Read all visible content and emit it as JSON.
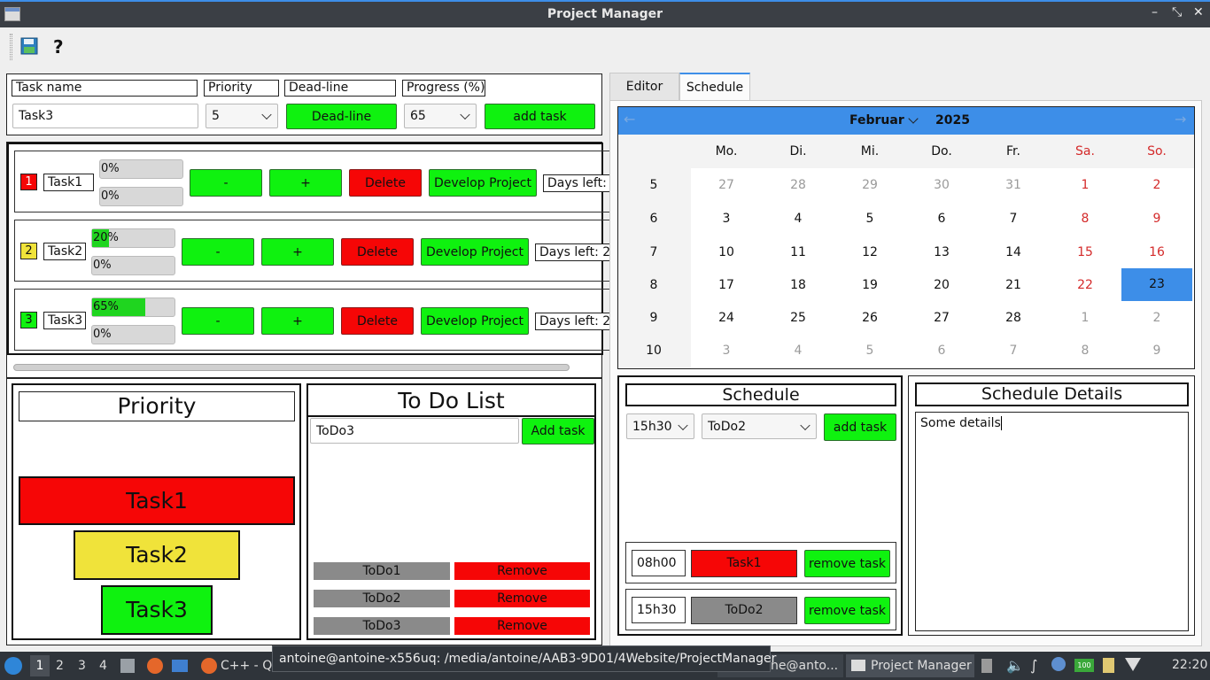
{
  "window": {
    "title": "Project Manager"
  },
  "top_inputs": {
    "labels": [
      "Task name",
      "Priority",
      "Dead-line",
      "Progress (%)"
    ],
    "task_name_value": "Task3",
    "priority_value": "5",
    "deadline_button": "Dead-line",
    "progress_value": "65",
    "add_task": "add task"
  },
  "tasks": [
    {
      "num": "1",
      "name": "Task1",
      "p1": "0%",
      "p2": "0%",
      "progress": 0,
      "minus": "-",
      "plus": "+",
      "delete": "Delete",
      "develop": "Develop Project",
      "days": "Days left:",
      "color": "#f60606"
    },
    {
      "num": "2",
      "name": "Task2",
      "p1": "20%",
      "p2": "0%",
      "progress": 20,
      "minus": "-",
      "plus": "+",
      "delete": "Delete",
      "develop": "Develop Project",
      "days": "Days left: 2",
      "color": "#f0e33a"
    },
    {
      "num": "3",
      "name": "Task3",
      "p1": "65%",
      "p2": "0%",
      "progress": 65,
      "minus": "-",
      "plus": "+",
      "delete": "Delete",
      "develop": "Develop Project",
      "days": "Days left: 2",
      "color": "#0ff20f"
    }
  ],
  "priority_panel": {
    "title": "Priority",
    "items": [
      "Task1",
      "Task2",
      "Task3"
    ]
  },
  "todo_panel": {
    "title": "To Do List",
    "input_value": "ToDo3",
    "add": "Add task",
    "items": [
      {
        "name": "ToDo1",
        "remove": "Remove"
      },
      {
        "name": "ToDo2",
        "remove": "Remove"
      },
      {
        "name": "ToDo3",
        "remove": "Remove"
      }
    ]
  },
  "tabs": [
    "Editor",
    "Schedule"
  ],
  "calendar": {
    "month": "Februar",
    "year": "2025",
    "weekdays": [
      "Mo.",
      "Di.",
      "Mi.",
      "Do.",
      "Fr.",
      "Sa.",
      "So."
    ],
    "weeks": [
      "5",
      "6",
      "7",
      "8",
      "9",
      "10"
    ],
    "rows": [
      [
        "27",
        "28",
        "29",
        "30",
        "31",
        "1",
        "2"
      ],
      [
        "3",
        "4",
        "5",
        "6",
        "7",
        "8",
        "9"
      ],
      [
        "10",
        "11",
        "12",
        "13",
        "14",
        "15",
        "16"
      ],
      [
        "17",
        "18",
        "19",
        "20",
        "21",
        "22",
        "23"
      ],
      [
        "24",
        "25",
        "26",
        "27",
        "28",
        "1",
        "2"
      ],
      [
        "3",
        "4",
        "5",
        "6",
        "7",
        "8",
        "9"
      ]
    ],
    "selected": "23"
  },
  "schedule": {
    "title": "Schedule",
    "time_value": "15h30",
    "todo_value": "ToDo2",
    "add": "add task",
    "entries": [
      {
        "time": "08h00",
        "task": "Task1",
        "remove": "remove task"
      },
      {
        "time": "15h30",
        "task": "ToDo2",
        "remove": "remove task"
      }
    ]
  },
  "schedule_details": {
    "title": "Schedule Details",
    "text": "Some details"
  },
  "tooltip": "antoine@antoine-x556uq: /media/antoine/AAB3-9D01/4Website/ProjectManager",
  "taskbar": {
    "workspaces": [
      "1",
      "2",
      "3",
      "4"
    ],
    "app1": "C++ - Qt",
    "app2": "ne@anto...",
    "app3": "Project Manager",
    "clock": "22:20",
    "battery": "100"
  }
}
